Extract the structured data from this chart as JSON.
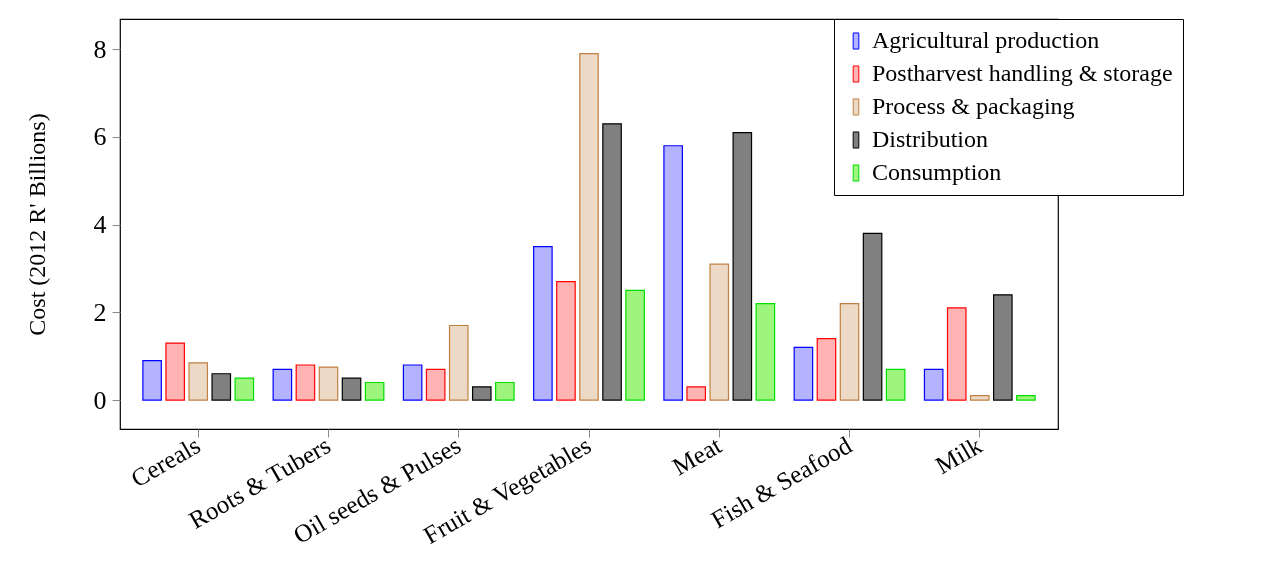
{
  "chart_data": {
    "type": "bar",
    "ylabel": "Cost (2012 R' Billions)",
    "categories": [
      "Cereals",
      "Roots & Tubers",
      "Oil seeds & Pulses",
      "Fruit & Vegetables",
      "Meat",
      "Fish & Seafood",
      "Milk"
    ],
    "series": [
      {
        "name": "Agricultural production",
        "color": "#b3b3ff",
        "values": [
          0.9,
          0.7,
          0.8,
          3.5,
          5.8,
          1.2,
          0.7
        ]
      },
      {
        "name": "Postharvest handling & storage",
        "color": "#ffb3b3",
        "values": [
          1.3,
          0.8,
          0.7,
          2.7,
          0.3,
          1.4,
          2.1
        ]
      },
      {
        "name": "Process & packaging",
        "color": "#ecd9c6",
        "values": [
          0.85,
          0.75,
          1.7,
          7.9,
          3.1,
          2.2,
          0.1
        ]
      },
      {
        "name": "Distribution",
        "color": "#808080",
        "values": [
          0.6,
          0.5,
          0.3,
          6.3,
          6.1,
          3.8,
          2.4
        ]
      },
      {
        "name": "Consumption",
        "color": "#9ef57d",
        "values": [
          0.5,
          0.4,
          0.4,
          2.5,
          2.2,
          0.7,
          0.1
        ]
      }
    ],
    "ylim": [
      -0.66,
      8.69
    ],
    "yticks": [
      0,
      2,
      4,
      6,
      8
    ],
    "grid": false,
    "legend": "top right"
  }
}
